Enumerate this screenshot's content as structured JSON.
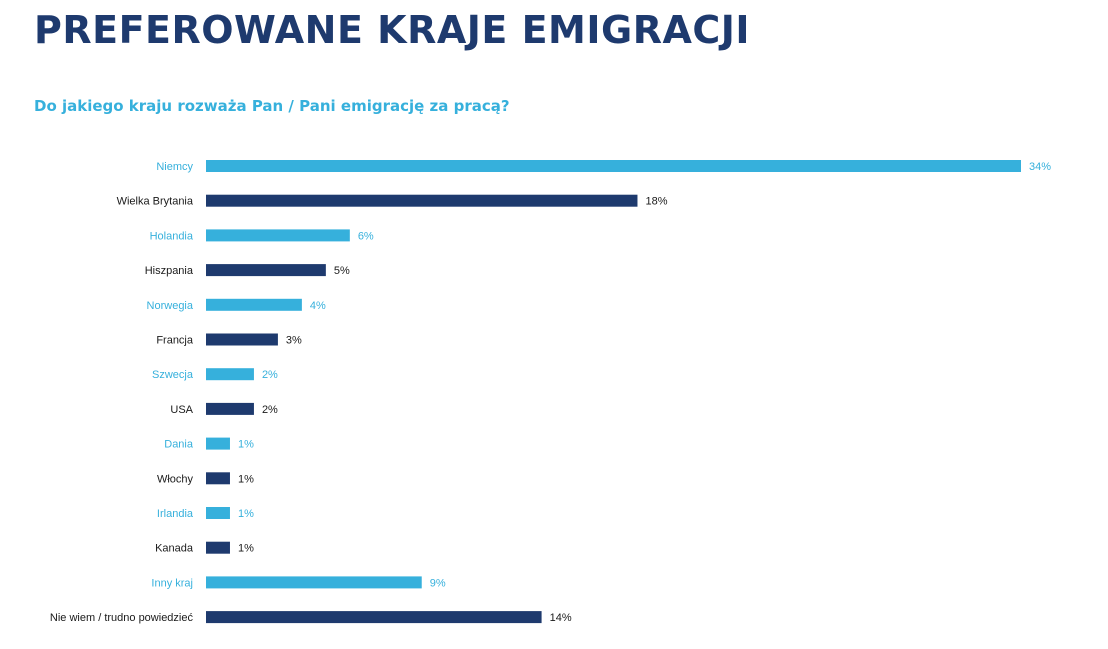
{
  "title": "PREFEROWANE KRAJE EMIGRACJI",
  "subtitle": "Do jakiego kraju rozważa Pan / Pani emigrację za pracą?",
  "colors": {
    "title": "#1e3a6e",
    "light": "#36b0dc",
    "dark": "#1e3a6e"
  },
  "chart_data": {
    "type": "bar",
    "orientation": "horizontal",
    "categories": [
      "Niemcy",
      "Wielka Brytania",
      "Holandia",
      "Hiszpania",
      "Norwegia",
      "Francja",
      "Szwecja",
      "USA",
      "Dania",
      "Włochy",
      "Irlandia",
      "Kanada",
      "Inny kraj",
      "Nie wiem / trudno powiedzieć"
    ],
    "values": [
      34,
      18,
      6,
      5,
      4,
      3,
      2,
      2,
      1,
      1,
      1,
      1,
      9,
      14
    ],
    "value_labels": [
      "34%",
      "18%",
      "6%",
      "5%",
      "4%",
      "3%",
      "2%",
      "2%",
      "1%",
      "1%",
      "1%",
      "1%",
      "9%",
      "14%"
    ],
    "bar_colors": [
      "#36b0dc",
      "#1e3a6e",
      "#36b0dc",
      "#1e3a6e",
      "#36b0dc",
      "#1e3a6e",
      "#36b0dc",
      "#1e3a6e",
      "#36b0dc",
      "#1e3a6e",
      "#36b0dc",
      "#1e3a6e",
      "#36b0dc",
      "#1e3a6e"
    ],
    "xlim": [
      0,
      34
    ],
    "grid": false,
    "legend": "none"
  }
}
